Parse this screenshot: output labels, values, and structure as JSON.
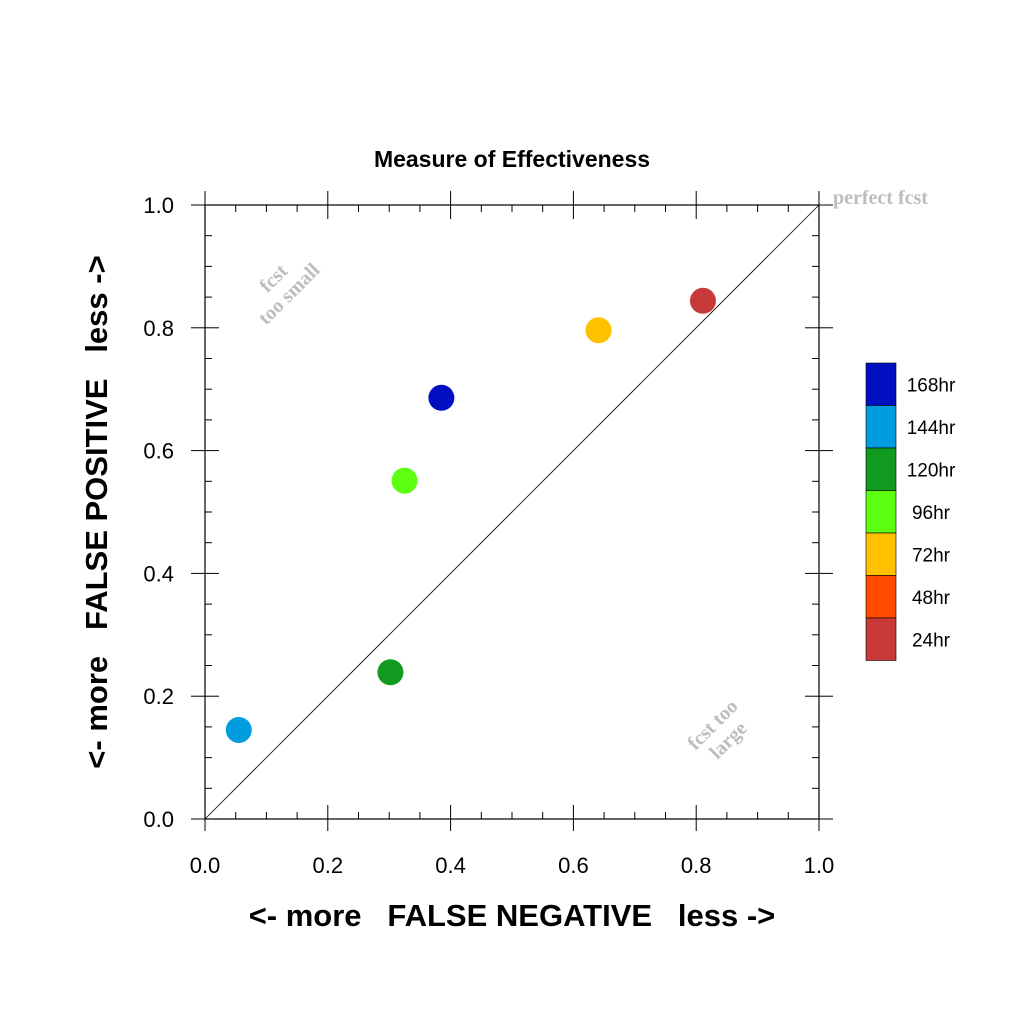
{
  "chart_data": {
    "type": "scatter",
    "title": "Measure of Effectiveness",
    "xlabel": "<- more   FALSE NEGATIVE   less ->",
    "ylabel": "<- more   FALSE POSITIVE   less ->",
    "xlim": [
      0,
      1
    ],
    "ylim": [
      0,
      1
    ],
    "xticks": [
      "0.0",
      "0.2",
      "0.4",
      "0.6",
      "0.8",
      "1.0"
    ],
    "yticks": [
      "0.0",
      "0.2",
      "0.4",
      "0.6",
      "0.8",
      "1.0"
    ],
    "grid": false,
    "legend_position": "right",
    "diagonal_line": true,
    "annotations": {
      "perfect": "perfect fcst",
      "too_small_1": "fcst",
      "too_small_2": "too small",
      "too_large_1": "fcst too",
      "too_large_2": "large"
    },
    "series": [
      {
        "name": "168hr",
        "color": "#0010c0",
        "x": 0.385,
        "y": 0.686
      },
      {
        "name": "144hr",
        "color": "#009ce0",
        "x": 0.055,
        "y": 0.145
      },
      {
        "name": "120hr",
        "color": "#109a20",
        "x": 0.302,
        "y": 0.239
      },
      {
        "name": "96hr",
        "color": "#5cff10",
        "x": 0.325,
        "y": 0.551
      },
      {
        "name": "72hr",
        "color": "#ffc000",
        "x": 0.641,
        "y": 0.796
      },
      {
        "name": "48hr",
        "color": "#ff4a00",
        "x": null,
        "y": null
      },
      {
        "name": "24hr",
        "color": "#c83a3a",
        "x": 0.811,
        "y": 0.844
      }
    ]
  }
}
